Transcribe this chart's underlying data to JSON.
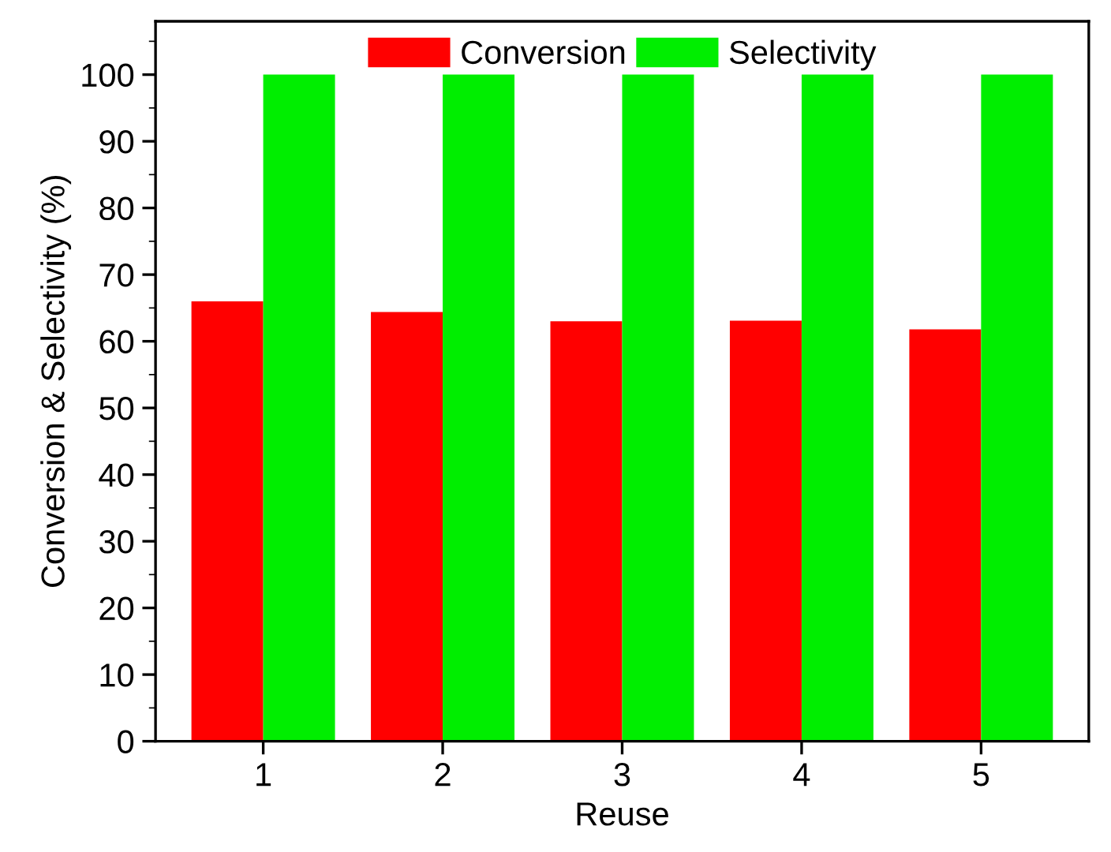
{
  "chart_data": {
    "type": "bar",
    "xlabel": "Reuse",
    "ylabel": "Conversion & Selectivity (%)",
    "categories": [
      "1",
      "2",
      "3",
      "4",
      "5"
    ],
    "series": [
      {
        "name": "Conversion",
        "color": "#ff0000",
        "values": [
          66,
          64.4,
          63,
          63.1,
          61.8
        ]
      },
      {
        "name": "Selectivity",
        "color": "#00ee00",
        "values": [
          100,
          100,
          100,
          100,
          100
        ]
      }
    ],
    "ylim": [
      0,
      108
    ],
    "yticks": [
      0,
      10,
      20,
      30,
      40,
      50,
      60,
      70,
      80,
      90,
      100
    ],
    "grid": false,
    "legend": "top"
  }
}
